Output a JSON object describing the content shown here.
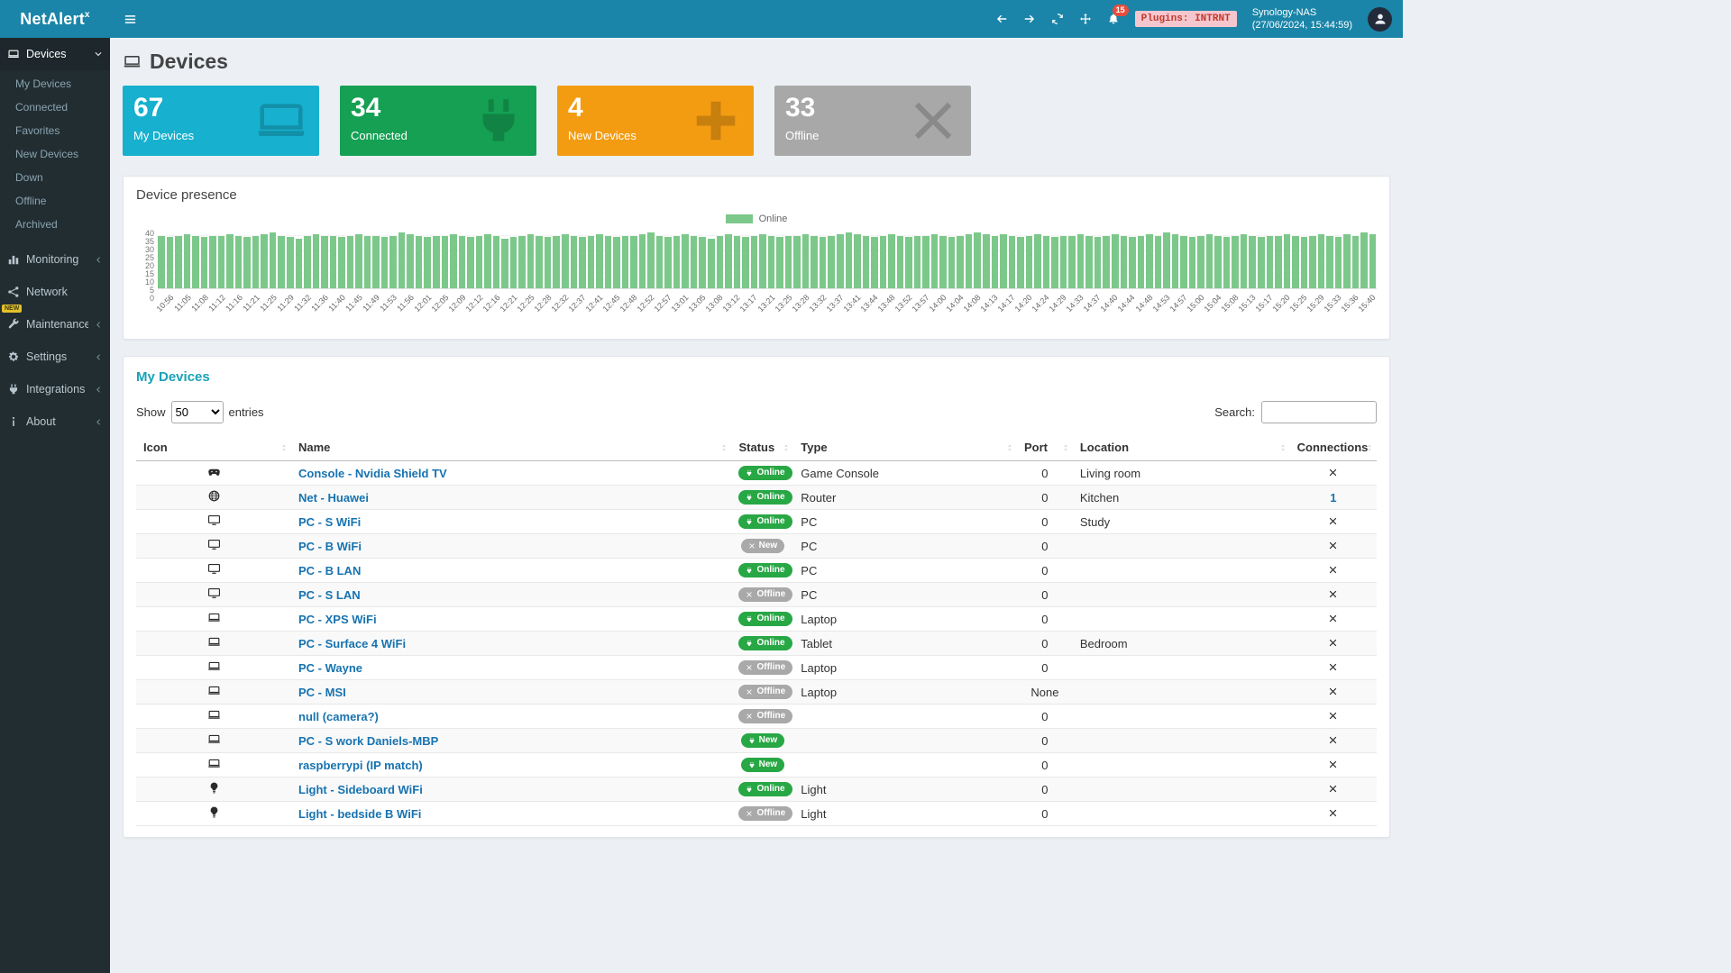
{
  "topbar": {
    "logo": {
      "name": "NetAlert",
      "sup": "x"
    },
    "notifications_count": "15",
    "plugins_badge": "Plugins: INTRNT",
    "host_name": "Synology-NAS",
    "host_time": "(27/06/2024, 15:44:59)"
  },
  "sidebar": {
    "devices_label": "Devices",
    "devices_submenu": [
      "My Devices",
      "Connected",
      "Favorites",
      "New Devices",
      "Down",
      "Offline",
      "Archived"
    ],
    "sections": [
      {
        "label": "Monitoring",
        "icon": "bar-chart-icon",
        "chevron": true
      },
      {
        "label": "Network",
        "icon": "network-icon",
        "chevron": false
      },
      {
        "label": "Maintenance",
        "icon": "wrench-icon",
        "chevron": true,
        "badge": "NEW"
      },
      {
        "label": "Settings",
        "icon": "gear-icon",
        "chevron": true
      },
      {
        "label": "Integrations",
        "icon": "plug-icon",
        "chevron": true
      },
      {
        "label": "About",
        "icon": "info-icon",
        "chevron": true
      }
    ]
  },
  "page": {
    "title": "Devices"
  },
  "stats": [
    {
      "value": "67",
      "label": "My Devices",
      "color": "#17b0ce",
      "icon": "laptop-icon"
    },
    {
      "value": "34",
      "label": "Connected",
      "color": "#15a053",
      "icon": "plug-icon"
    },
    {
      "value": "4",
      "label": "New Devices",
      "color": "#f39c12",
      "icon": "plus-icon"
    },
    {
      "value": "33",
      "label": "Offline",
      "color": "#a8a8a8",
      "icon": "close-icon"
    }
  ],
  "presence": {
    "title": "Device presence",
    "chart_data": {
      "type": "bar",
      "title": "Device presence",
      "xlabel": "",
      "ylabel": "",
      "ylim": [
        0,
        40
      ],
      "yticks": [
        0,
        5,
        10,
        15,
        20,
        25,
        30,
        35,
        40
      ],
      "grid": true,
      "legend_position": "top",
      "legend": [
        {
          "name": "Online",
          "color": "#7cc88a"
        }
      ],
      "x_labels": [
        "10:56",
        "11:05",
        "11:08",
        "11:12",
        "11:16",
        "11:21",
        "11:25",
        "11:29",
        "11:32",
        "11:36",
        "11:40",
        "11:45",
        "11:49",
        "11:53",
        "11:56",
        "12:01",
        "12:05",
        "12:09",
        "12:12",
        "12:16",
        "12:21",
        "12:25",
        "12:28",
        "12:32",
        "12:37",
        "12:41",
        "12:45",
        "12:48",
        "12:52",
        "12:57",
        "13:01",
        "13:05",
        "13:08",
        "13:12",
        "13:17",
        "13:21",
        "13:25",
        "13:28",
        "13:32",
        "13:37",
        "13:41",
        "13:44",
        "13:48",
        "13:52",
        "13:57",
        "14:00",
        "14:04",
        "14:08",
        "14:13",
        "14:17",
        "14:20",
        "14:24",
        "14:29",
        "14:33",
        "14:37",
        "14:40",
        "14:44",
        "14:48",
        "14:53",
        "14:57",
        "15:00",
        "15:04",
        "15:08",
        "15:13",
        "15:17",
        "15:20",
        "15:25",
        "15:29",
        "15:33",
        "15:36",
        "15:40"
      ],
      "series": [
        {
          "name": "Online",
          "color": "#7cc88a",
          "values": [
            36,
            35,
            36,
            37,
            36,
            35,
            36,
            36,
            37,
            36,
            35,
            36,
            37,
            38,
            36,
            35,
            34,
            36,
            37,
            36,
            36,
            35,
            36,
            37,
            36,
            36,
            35,
            36,
            38,
            37,
            36,
            35,
            36,
            36,
            37,
            36,
            35,
            36,
            37,
            36,
            34,
            35,
            36,
            37,
            36,
            35,
            36,
            37,
            36,
            35,
            36,
            37,
            36,
            35,
            36,
            36,
            37,
            38,
            36,
            35,
            36,
            37,
            36,
            35,
            34,
            36,
            37,
            36,
            35,
            36,
            37,
            36,
            35,
            36,
            36,
            37,
            36,
            35,
            36,
            37,
            38,
            37,
            36,
            35,
            36,
            37,
            36,
            35,
            36,
            36,
            37,
            36,
            35,
            36,
            37,
            38,
            37,
            36,
            37,
            36,
            35,
            36,
            37,
            36,
            35,
            36,
            36,
            37,
            36,
            35,
            36,
            37,
            36,
            35,
            36,
            37,
            36,
            38,
            37,
            36,
            35,
            36,
            37,
            36,
            35,
            36,
            37,
            36,
            35,
            36,
            36,
            37,
            36,
            35,
            36,
            37,
            36,
            35,
            37,
            36,
            38,
            37
          ]
        }
      ]
    }
  },
  "table": {
    "title": "My Devices",
    "show_label": "Show",
    "page_length": "50",
    "entries_label": "entries",
    "search_label": "Search:",
    "columns": [
      "Icon",
      "Name",
      "Status",
      "Type",
      "Port",
      "Location",
      "Connections"
    ],
    "rows": [
      {
        "icon": "gamepad-icon",
        "name": "Console - Nvidia Shield TV",
        "status": "Online",
        "status_variant": "online",
        "type": "Game Console",
        "port": "0",
        "location": "Living room",
        "connections": ""
      },
      {
        "icon": "globe-icon",
        "name": "Net - Huawei",
        "status": "Online",
        "status_variant": "online",
        "type": "Router",
        "port": "0",
        "location": "Kitchen",
        "connections": "1"
      },
      {
        "icon": "desktop-icon",
        "name": "PC - S WiFi",
        "status": "Online",
        "status_variant": "online",
        "type": "PC",
        "port": "0",
        "location": "Study",
        "connections": ""
      },
      {
        "icon": "desktop-icon",
        "name": "PC - B WiFi",
        "status": "New",
        "status_variant": "new-gray",
        "type": "PC",
        "port": "0",
        "location": "",
        "connections": ""
      },
      {
        "icon": "desktop-icon",
        "name": "PC - B LAN",
        "status": "Online",
        "status_variant": "online",
        "type": "PC",
        "port": "0",
        "location": "",
        "connections": ""
      },
      {
        "icon": "desktop-icon",
        "name": "PC - S LAN",
        "status": "Offline",
        "status_variant": "offline",
        "type": "PC",
        "port": "0",
        "location": "",
        "connections": ""
      },
      {
        "icon": "laptop-icon",
        "name": "PC - XPS WiFi",
        "status": "Online",
        "status_variant": "online",
        "type": "Laptop",
        "port": "0",
        "location": "",
        "connections": ""
      },
      {
        "icon": "laptop-icon",
        "name": "PC - Surface 4 WiFi",
        "status": "Online",
        "status_variant": "online",
        "type": "Tablet",
        "port": "0",
        "location": "Bedroom",
        "connections": ""
      },
      {
        "icon": "laptop-icon",
        "name": "PC - Wayne",
        "status": "Offline",
        "status_variant": "offline",
        "type": "Laptop",
        "port": "0",
        "location": "",
        "connections": ""
      },
      {
        "icon": "laptop-icon",
        "name": "PC - MSI",
        "status": "Offline",
        "status_variant": "offline",
        "type": "Laptop",
        "port": "None",
        "location": "",
        "connections": ""
      },
      {
        "icon": "laptop-icon",
        "name": "null (camera?)",
        "status": "Offline",
        "status_variant": "offline",
        "type": "",
        "port": "0",
        "location": "",
        "connections": ""
      },
      {
        "icon": "laptop-icon",
        "name": "PC - S work Daniels-MBP",
        "status": "New",
        "status_variant": "new-green",
        "type": "",
        "port": "0",
        "location": "",
        "connections": ""
      },
      {
        "icon": "laptop-icon",
        "name": "raspberrypi (IP match)",
        "status": "New",
        "status_variant": "new-green",
        "type": "",
        "port": "0",
        "location": "",
        "connections": ""
      },
      {
        "icon": "lightbulb-icon",
        "name": "Light - Sideboard WiFi",
        "status": "Online",
        "status_variant": "online",
        "type": "Light",
        "port": "0",
        "location": "",
        "connections": ""
      },
      {
        "icon": "lightbulb-icon",
        "name": "Light - bedside B WiFi",
        "status": "Offline",
        "status_variant": "offline",
        "type": "Light",
        "port": "0",
        "location": "",
        "connections": ""
      }
    ]
  }
}
